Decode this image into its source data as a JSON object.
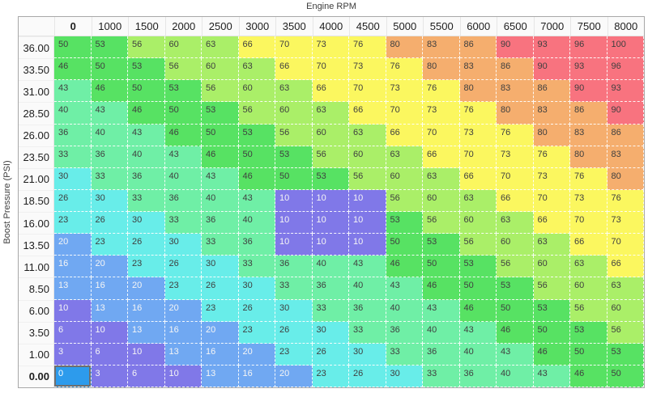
{
  "axes": {
    "x_title": "Engine RPM",
    "y_title": "Boost Pressure (PSI)"
  },
  "chart_data": {
    "type": "heatmap",
    "title": "Engine RPM",
    "xlabel": "Engine RPM",
    "ylabel": "Boost Pressure (PSI)",
    "columns": [
      "0",
      "1000",
      "1500",
      "2000",
      "2500",
      "3000",
      "3500",
      "4000",
      "4500",
      "5000",
      "5500",
      "6000",
      "6500",
      "7000",
      "7500",
      "8000"
    ],
    "rows": [
      "36.00",
      "33.50",
      "31.00",
      "28.50",
      "26.00",
      "23.50",
      "21.00",
      "18.50",
      "16.00",
      "13.50",
      "11.00",
      "8.50",
      "6.00",
      "3.50",
      "1.00",
      "0.00"
    ],
    "values": [
      [
        50,
        53,
        56,
        60,
        63,
        66,
        70,
        73,
        76,
        80,
        83,
        86,
        90,
        93,
        96,
        100
      ],
      [
        46,
        50,
        53,
        56,
        60,
        63,
        66,
        70,
        73,
        76,
        80,
        83,
        86,
        90,
        93,
        96
      ],
      [
        43,
        46,
        50,
        53,
        56,
        60,
        63,
        66,
        70,
        73,
        76,
        80,
        83,
        86,
        90,
        93
      ],
      [
        40,
        43,
        46,
        50,
        53,
        56,
        60,
        63,
        66,
        70,
        73,
        76,
        80,
        83,
        86,
        90
      ],
      [
        36,
        40,
        43,
        46,
        50,
        53,
        56,
        60,
        63,
        66,
        70,
        73,
        76,
        80,
        83,
        86
      ],
      [
        33,
        36,
        40,
        43,
        46,
        50,
        53,
        56,
        60,
        63,
        66,
        70,
        73,
        76,
        80,
        83
      ],
      [
        30,
        33,
        36,
        40,
        43,
        46,
        50,
        53,
        56,
        60,
        63,
        66,
        70,
        73,
        76,
        80
      ],
      [
        26,
        30,
        33,
        36,
        40,
        43,
        10,
        10,
        10,
        56,
        60,
        63,
        66,
        70,
        73,
        76
      ],
      [
        23,
        26,
        30,
        33,
        36,
        40,
        10,
        10,
        10,
        53,
        56,
        60,
        63,
        66,
        70,
        73
      ],
      [
        20,
        23,
        26,
        30,
        33,
        36,
        10,
        10,
        10,
        50,
        53,
        56,
        60,
        63,
        66,
        70
      ],
      [
        16,
        20,
        23,
        26,
        30,
        33,
        36,
        40,
        43,
        46,
        50,
        53,
        56,
        60,
        63,
        66
      ],
      [
        13,
        16,
        20,
        23,
        26,
        30,
        33,
        36,
        40,
        43,
        46,
        50,
        53,
        56,
        60,
        63
      ],
      [
        10,
        13,
        16,
        20,
        23,
        26,
        30,
        33,
        36,
        40,
        43,
        46,
        50,
        53,
        56,
        60
      ],
      [
        6,
        10,
        13,
        16,
        20,
        23,
        26,
        30,
        33,
        36,
        40,
        43,
        46,
        50,
        53,
        56
      ],
      [
        3,
        6,
        10,
        13,
        16,
        20,
        23,
        26,
        30,
        33,
        36,
        40,
        43,
        46,
        50,
        53
      ],
      [
        0,
        3,
        6,
        10,
        13,
        16,
        20,
        23,
        26,
        30,
        33,
        36,
        40,
        43,
        46,
        50
      ]
    ],
    "value_range": [
      0,
      100
    ],
    "color_bands": [
      {
        "max": 12,
        "bg": "#8078E8",
        "fg": "#F5F5F5"
      },
      {
        "max": 22,
        "bg": "#70A8F2",
        "fg": "#F5F5F5"
      },
      {
        "max": 32,
        "bg": "#68EDE9",
        "fg": "#3F3F3F"
      },
      {
        "max": 45,
        "bg": "#6FEFA6",
        "fg": "#3F3F3F"
      },
      {
        "max": 55,
        "bg": "#57E263",
        "fg": "#3F3F3F"
      },
      {
        "max": 65,
        "bg": "#AAEF68",
        "fg": "#3F3F3F"
      },
      {
        "max": 78,
        "bg": "#FBF75F",
        "fg": "#3F3F3F"
      },
      {
        "max": 88,
        "bg": "#F5AE6E",
        "fg": "#3F3F3F"
      },
      {
        "max": 100,
        "bg": "#F8737F",
        "fg": "#3F3F3F"
      }
    ],
    "selected_cell": {
      "row_label": "0.00",
      "col_label": "0",
      "row_index": 15,
      "col_index": 0,
      "value": 0,
      "bg": "#2D9BEC",
      "fg": "#FFFFFF",
      "border": "#6F6F6F"
    },
    "legend_position": "none",
    "grid": "dashed-white"
  }
}
